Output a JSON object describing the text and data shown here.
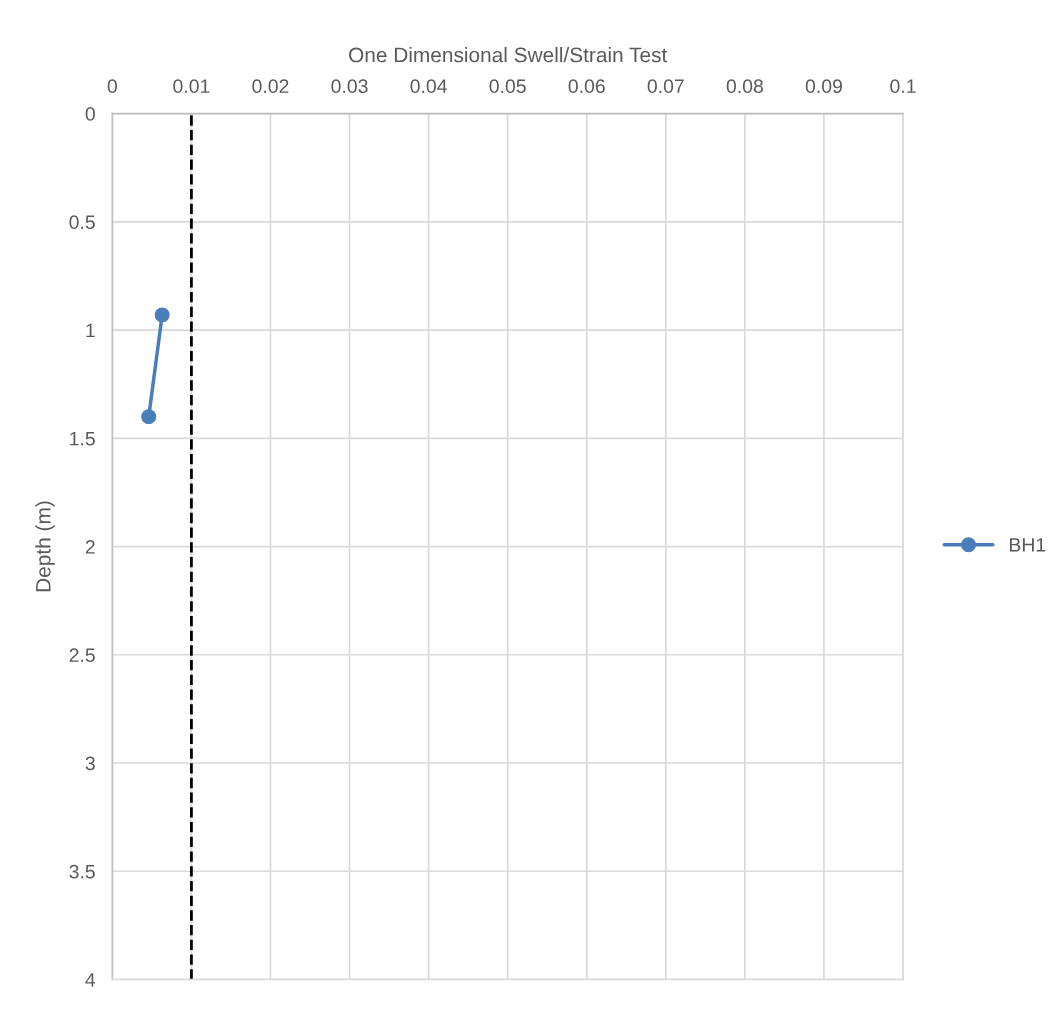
{
  "chart_data": {
    "type": "line",
    "xlabel": "One Dimensional Swell/Strain Test",
    "ylabel": "Depth (m)",
    "series": [
      {
        "name": "BH1",
        "color": "#4a7ebb",
        "x": [
          0.0063,
          0.0046
        ],
        "values": [
          0.93,
          1.4
        ]
      }
    ],
    "xlim": [
      0,
      0.1
    ],
    "xticks": [
      0,
      0.01,
      0.02,
      0.03,
      0.04,
      0.05,
      0.06,
      0.07,
      0.08,
      0.09,
      0.1
    ],
    "ylim": [
      4,
      0
    ],
    "yticks": [
      0,
      0.5,
      1,
      1.5,
      2,
      2.5,
      3,
      3.5,
      4
    ],
    "ref_lines": [
      {
        "axis": "x",
        "value": 0.01,
        "color": "#000000",
        "line_style": "dashed"
      }
    ],
    "grid": true,
    "legend": "right",
    "marker": "circle",
    "line_style": "solid"
  }
}
